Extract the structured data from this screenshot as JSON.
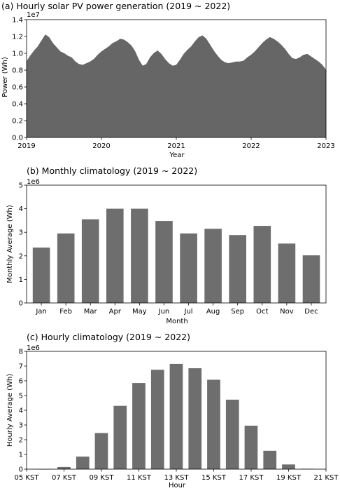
{
  "chart_data": [
    {
      "type": "area",
      "title": "(a) Hourly solar PV power generation (2019 ~ 2022)",
      "xlabel": "Year",
      "ylabel": "Power (Wh)",
      "offset_label": "1e7",
      "color": "#666666",
      "xlim": [
        2019,
        2023
      ],
      "ylim": [
        0,
        1.4
      ],
      "x_ticks": [
        "2019",
        "2020",
        "2021",
        "2022",
        "2023"
      ],
      "y_ticks": [
        "0.0",
        "0.2",
        "0.4",
        "0.6",
        "0.8",
        "1.0",
        "1.2",
        "1.4"
      ],
      "series": [
        {
          "x": [
            2019.0,
            2019.05,
            2019.1,
            2019.15,
            2019.2,
            2019.25,
            2019.3,
            2019.35,
            2019.4,
            2019.45,
            2019.5,
            2019.55,
            2019.6,
            2019.65,
            2019.7,
            2019.75,
            2019.8,
            2019.85,
            2019.9,
            2019.95,
            2020.0,
            2020.05,
            2020.1,
            2020.15,
            2020.2,
            2020.25,
            2020.3,
            2020.35,
            2020.4,
            2020.45,
            2020.5,
            2020.55,
            2020.6,
            2020.65,
            2020.7,
            2020.75,
            2020.8,
            2020.85,
            2020.9,
            2020.95,
            2021.0,
            2021.05,
            2021.1,
            2021.15,
            2021.2,
            2021.25,
            2021.3,
            2021.35,
            2021.4,
            2021.45,
            2021.5,
            2021.55,
            2021.6,
            2021.65,
            2021.7,
            2021.75,
            2021.8,
            2021.85,
            2021.9,
            2021.95,
            2022.0,
            2022.05,
            2022.1,
            2022.15,
            2022.2,
            2022.25,
            2022.3,
            2022.35,
            2022.4,
            2022.45,
            2022.5,
            2022.55,
            2022.6,
            2022.65,
            2022.7,
            2022.75,
            2022.8,
            2022.85,
            2022.9,
            2022.95,
            2023.0
          ],
          "y": [
            0.9,
            0.97,
            1.03,
            1.08,
            1.15,
            1.22,
            1.19,
            1.12,
            1.07,
            1.02,
            1.0,
            0.97,
            0.95,
            0.9,
            0.87,
            0.86,
            0.88,
            0.9,
            0.93,
            0.98,
            1.02,
            1.05,
            1.08,
            1.12,
            1.14,
            1.17,
            1.16,
            1.13,
            1.09,
            1.02,
            0.92,
            0.85,
            0.87,
            0.95,
            1.0,
            1.03,
            0.99,
            0.93,
            0.88,
            0.85,
            0.86,
            0.92,
            0.99,
            1.04,
            1.08,
            1.14,
            1.19,
            1.21,
            1.17,
            1.1,
            1.03,
            0.97,
            0.92,
            0.89,
            0.88,
            0.89,
            0.9,
            0.9,
            0.91,
            0.95,
            0.98,
            1.02,
            1.07,
            1.12,
            1.16,
            1.19,
            1.17,
            1.14,
            1.1,
            1.05,
            0.99,
            0.94,
            0.93,
            0.95,
            0.98,
            0.99,
            0.96,
            0.93,
            0.9,
            0.86,
            0.8
          ]
        }
      ]
    },
    {
      "type": "bar",
      "title": "(b) Monthly climatology (2019 ~ 2022)",
      "xlabel": "Month",
      "ylabel": "Monthly Average (Wh)",
      "offset_label": "1e6",
      "color": "#6e6e6e",
      "ylim": [
        0,
        5
      ],
      "y_ticks": [
        "0",
        "1",
        "2",
        "3",
        "4",
        "5"
      ],
      "categories": [
        "Jan",
        "Feb",
        "Mar",
        "Apr",
        "May",
        "Jun",
        "Jul",
        "Aug",
        "Sep",
        "Oct",
        "Nov",
        "Dec"
      ],
      "values": [
        2.35,
        2.95,
        3.55,
        4.0,
        4.0,
        3.48,
        2.95,
        3.15,
        2.88,
        3.27,
        2.52,
        2.02
      ]
    },
    {
      "type": "bar",
      "title": "(c) Hourly climatology (2019 ~ 2022)",
      "xlabel": "Hour",
      "ylabel": "Hourly Average (Wh)",
      "offset_label": "1e6",
      "color": "#6e6e6e",
      "ylim": [
        0,
        8
      ],
      "xlim": [
        5,
        21
      ],
      "y_ticks": [
        "0",
        "1",
        "2",
        "3",
        "4",
        "5",
        "6",
        "7",
        "8"
      ],
      "x_ticks": [
        "05 KST",
        "07 KST",
        "09 KST",
        "11 KST",
        "13 KST",
        "15 KST",
        "17 KST",
        "19 KST",
        "21 KST"
      ],
      "x": [
        6,
        7,
        8,
        9,
        10,
        11,
        12,
        13,
        14,
        15,
        16,
        17,
        18,
        19,
        20
      ],
      "values": [
        0.01,
        0.15,
        0.85,
        2.45,
        4.3,
        5.85,
        6.75,
        7.15,
        6.85,
        6.07,
        4.72,
        2.95,
        1.25,
        0.32,
        0.03
      ]
    }
  ]
}
